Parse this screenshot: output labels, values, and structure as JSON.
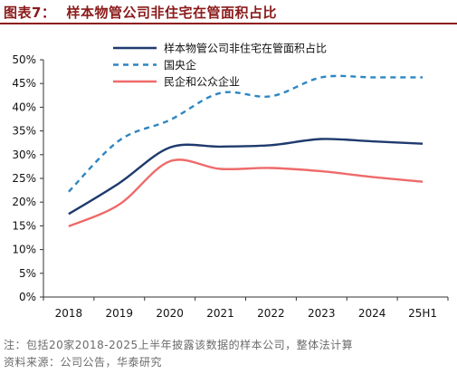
{
  "header": {
    "figure_label": "图表7：",
    "title": "样本物管公司非住宅在管面积占比"
  },
  "footer": {
    "note": "注：包括20家2018-2025上半年披露该数据的样本公司，整体法计算",
    "source": "资料来源：公司公告，华泰研究"
  },
  "colors": {
    "title": "#8b1a1a",
    "series_1": "#1f3a6e",
    "series_2": "#2e86c1",
    "series_3": "#ef6a6a"
  },
  "chart_data": {
    "type": "line",
    "title": "",
    "xlabel": "",
    "ylabel": "",
    "categories": [
      "2018",
      "2019",
      "2020",
      "2021",
      "2022",
      "2023",
      "2024",
      "25H1"
    ],
    "ylim": [
      0,
      50
    ],
    "yticks": [
      "0%",
      "5%",
      "10%",
      "15%",
      "20%",
      "25%",
      "30%",
      "35%",
      "40%",
      "45%",
      "50%"
    ],
    "grid": false,
    "legend_position": "top-center",
    "series": [
      {
        "name": "样本物管公司非住宅在管面积占比",
        "style": "solid",
        "color": "#1f3a6e",
        "values": [
          17.5,
          24.0,
          31.5,
          31.7,
          32.0,
          33.3,
          32.8,
          32.3
        ]
      },
      {
        "name": "国央企",
        "style": "dashed",
        "color": "#2e86c1",
        "values": [
          22.2,
          33.0,
          37.3,
          43.0,
          42.3,
          46.3,
          46.3,
          46.3
        ]
      },
      {
        "name": "民企和公众企业",
        "style": "solid",
        "color": "#ef6a6a",
        "values": [
          14.9,
          19.5,
          28.6,
          27.0,
          27.2,
          26.5,
          25.3,
          24.3
        ]
      }
    ]
  }
}
